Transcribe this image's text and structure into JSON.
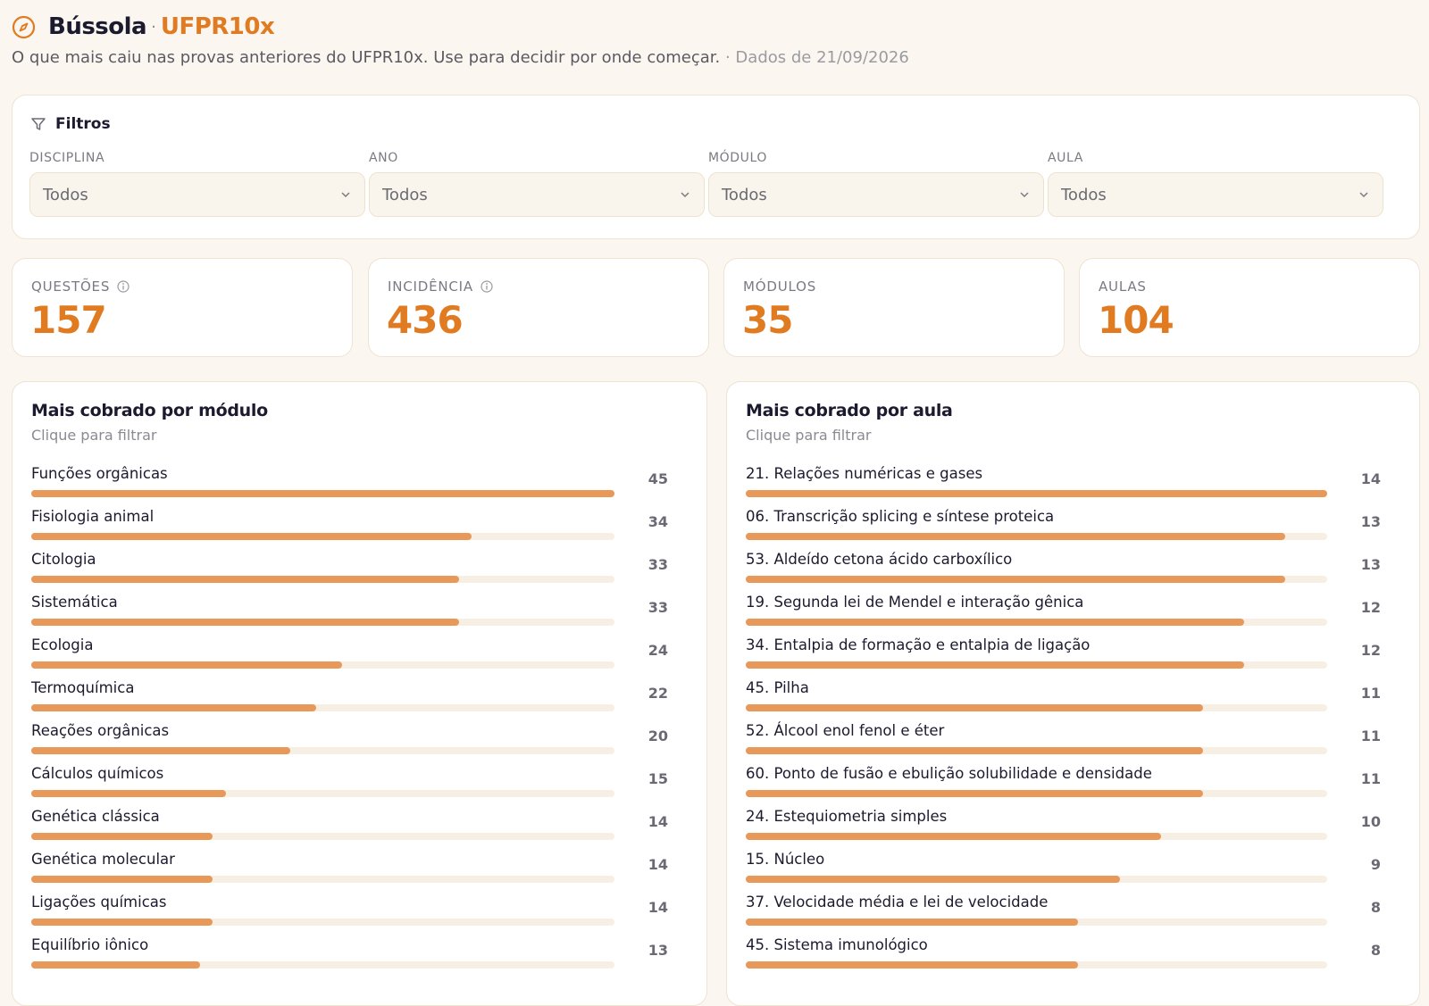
{
  "header": {
    "brand": "Bússola",
    "separator": "·",
    "subbrand": "UFPR10x",
    "subtitle": "O que mais caiu nas provas anteriores do UFPR10x. Use para decidir por onde começar.",
    "date_text": "· Dados de 21/09/2026",
    "icon": "compass-icon"
  },
  "filters": {
    "title": "Filtros",
    "icon": "filter-icon",
    "groups": [
      {
        "label": "Disciplina",
        "value": "Todos"
      },
      {
        "label": "Ano",
        "value": "Todos"
      },
      {
        "label": "Módulo",
        "value": "Todos"
      },
      {
        "label": "Aula",
        "value": "Todos"
      }
    ]
  },
  "stats": [
    {
      "label": "Questões",
      "value": "157",
      "info": true
    },
    {
      "label": "Incidência",
      "value": "436",
      "info": true
    },
    {
      "label": "Módulos",
      "value": "35",
      "info": false
    },
    {
      "label": "Aulas",
      "value": "104",
      "info": false
    }
  ],
  "colors": {
    "accent": "#e07b22",
    "bar": "#e8995a",
    "track": "#f8efe4",
    "background": "#fbf7f0"
  },
  "modules_panel": {
    "title": "Mais cobrado por módulo",
    "hint": "Clique para filtrar",
    "max": 45,
    "items": [
      {
        "name": "Funções orgânicas",
        "value": 45
      },
      {
        "name": "Fisiologia animal",
        "value": 34
      },
      {
        "name": "Citologia",
        "value": 33
      },
      {
        "name": "Sistemática",
        "value": 33
      },
      {
        "name": "Ecologia",
        "value": 24
      },
      {
        "name": "Termoquímica",
        "value": 22
      },
      {
        "name": "Reações orgânicas",
        "value": 20
      },
      {
        "name": "Cálculos químicos",
        "value": 15
      },
      {
        "name": "Genética clássica",
        "value": 14
      },
      {
        "name": "Genética molecular",
        "value": 14
      },
      {
        "name": "Ligações químicas",
        "value": 14
      },
      {
        "name": "Equilíbrio iônico",
        "value": 13
      }
    ]
  },
  "lessons_panel": {
    "title": "Mais cobrado por aula",
    "hint": "Clique para filtrar",
    "max": 14,
    "items": [
      {
        "name": "21. Relações numéricas e gases",
        "value": 14
      },
      {
        "name": "06. Transcrição splicing e síntese proteica",
        "value": 13
      },
      {
        "name": "53. Aldeído cetona ácido carboxílico",
        "value": 13
      },
      {
        "name": "19. Segunda lei de Mendel e interação gênica",
        "value": 12
      },
      {
        "name": "34. Entalpia de formação e entalpia de ligação",
        "value": 12
      },
      {
        "name": "45. Pilha",
        "value": 11
      },
      {
        "name": "52. Álcool enol fenol e éter",
        "value": 11
      },
      {
        "name": "60. Ponto de fusão e ebulição solubilidade e densidade",
        "value": 11
      },
      {
        "name": "24. Estequiometria simples",
        "value": 10
      },
      {
        "name": "15. Núcleo",
        "value": 9
      },
      {
        "name": "37. Velocidade média e lei de velocidade",
        "value": 8
      },
      {
        "name": "45. Sistema imunológico",
        "value": 8
      }
    ]
  }
}
